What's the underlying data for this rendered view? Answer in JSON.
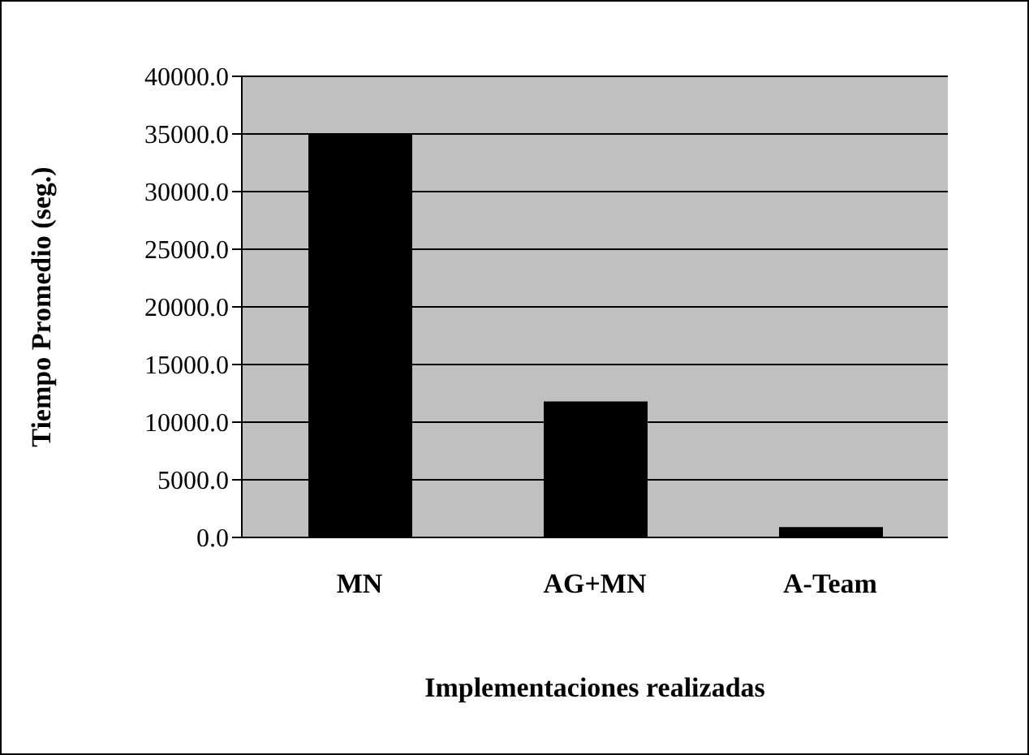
{
  "chart_data": {
    "type": "bar",
    "xlabel": "Implementaciones realizadas",
    "ylabel": "Tiempo Promedio (seg.)",
    "categories": [
      "MN",
      "AG+MN",
      "A-Team"
    ],
    "values": [
      35000,
      11800,
      900
    ],
    "color": "#000000",
    "ylim": [
      0,
      40000
    ],
    "yticks": [
      {
        "value": 0,
        "label": "0.0"
      },
      {
        "value": 5000,
        "label": "5000.0"
      },
      {
        "value": 10000,
        "label": "10000.0"
      },
      {
        "value": 15000,
        "label": "15000.0"
      },
      {
        "value": 20000,
        "label": "20000.0"
      },
      {
        "value": 25000,
        "label": "25000.0"
      },
      {
        "value": 30000,
        "label": "30000.0"
      },
      {
        "value": 35000,
        "label": "35000.0"
      },
      {
        "value": 40000,
        "label": "40000.0"
      }
    ],
    "grid": "y",
    "legend": false
  }
}
